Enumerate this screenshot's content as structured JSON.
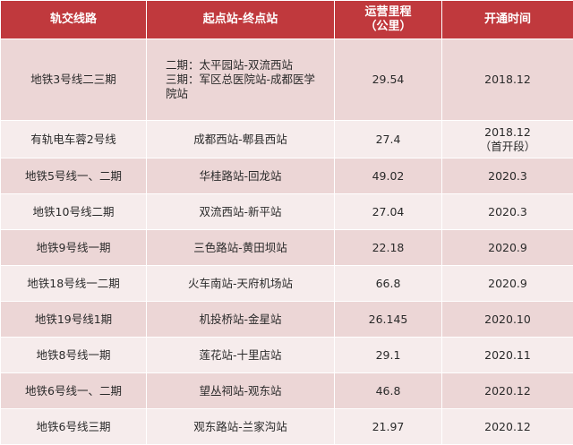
{
  "table": {
    "headers": [
      "轨交线路",
      "起点站-终点站",
      "运营里程\n（公里）",
      "开通时间"
    ],
    "rows": [
      {
        "line": "地铁3号线二三期",
        "route": "二期：太平园站-双流西站\n三期：军区总医院站-成都医学\n院站",
        "km": "29.54",
        "opening": "2018.12"
      },
      {
        "line": "有轨电车蓉2号线",
        "route": "成都西站-郫县西站",
        "km": "27.4",
        "opening": "2018.12\n（首开段）"
      },
      {
        "line": "地铁5号线一、二期",
        "route": "华桂路站-回龙站",
        "km": "49.02",
        "opening": "2020.3"
      },
      {
        "line": "地铁10号线二期",
        "route": "双流西站-新平站",
        "km": "27.04",
        "opening": "2020.3"
      },
      {
        "line": "地铁9号线一期",
        "route": "三色路站-黄田坝站",
        "km": "22.18",
        "opening": "2020.9"
      },
      {
        "line": "地铁18号线一二期",
        "route": "火车南站-天府机场站",
        "km": "66.8",
        "opening": "2020.9"
      },
      {
        "line": "地铁19号线1期",
        "route": "机投桥站-金星站",
        "km": "26.145",
        "opening": "2020.10"
      },
      {
        "line": "地铁8号线一期",
        "route": "莲花站-十里店站",
        "km": "29.1",
        "opening": "2020.11"
      },
      {
        "line": "地铁6号线一、二期",
        "route": "望丛祠站-观东站",
        "km": "46.8",
        "opening": "2020.12"
      },
      {
        "line": "地铁6号线三期",
        "route": "观东路站-兰家沟站",
        "km": "21.97",
        "opening": "2020.12"
      }
    ]
  },
  "colors": {
    "header_bg": "#c0393d",
    "header_text": "#ffffff",
    "row_odd_bg": "#ecd6d6",
    "row_even_bg": "#f6ecec",
    "body_text": "#2a2a2a"
  }
}
